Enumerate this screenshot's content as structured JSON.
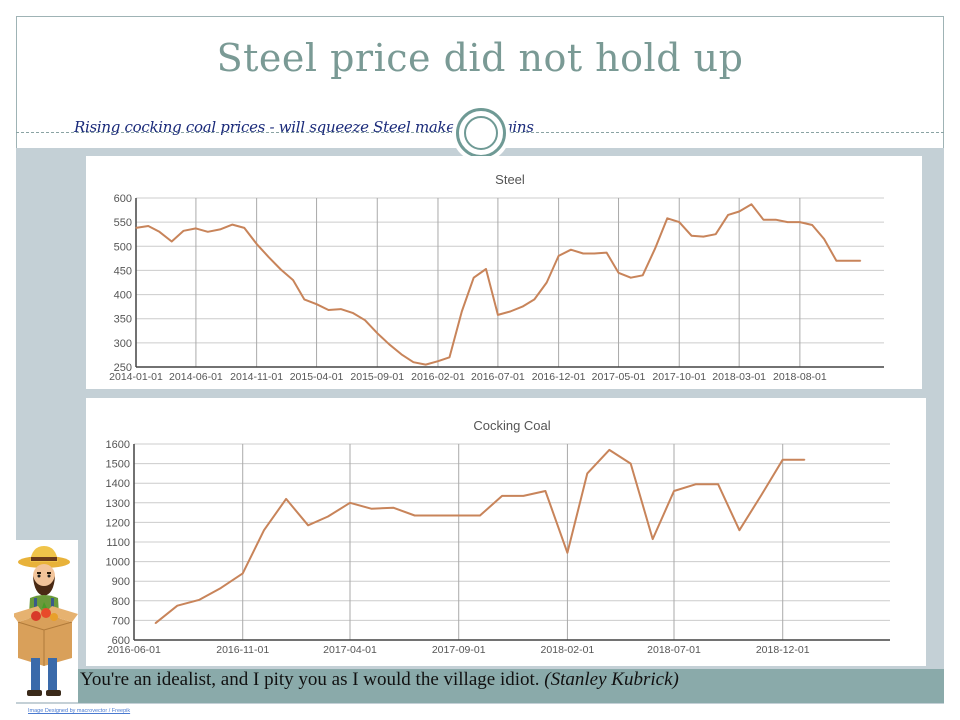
{
  "slide": {
    "title": "Steel price did not hold up",
    "subtitle": "Rising cocking coal prices - will squeeze Steel makers margins",
    "quote_text": "You're an idealist, and I pity you as I would the village idiot.",
    "quote_author": "(Stanley Kubrick)",
    "image_credit": "Image Designed by macrovector / Freepik",
    "colors": {
      "title": "#7a9a95",
      "band": "#c4d0d6",
      "line": "#c8845a",
      "quote_bar": "#8aaaaa",
      "subtitle": "#1a2a7a"
    }
  },
  "chart_data": [
    {
      "type": "line",
      "title": "Steel",
      "xlabel": "",
      "ylabel": "",
      "ylim": [
        250,
        600
      ],
      "yticks": [
        250,
        300,
        350,
        400,
        450,
        500,
        550,
        600
      ],
      "xlim": [
        "2014-01-01",
        "2019-03-01"
      ],
      "xticks": [
        "2014-01-01",
        "2014-06-01",
        "2014-11-01",
        "2015-04-01",
        "2015-09-01",
        "2016-02-01",
        "2016-07-01",
        "2016-12-01",
        "2017-05-01",
        "2017-10-01",
        "2018-03-01",
        "2018-08-01"
      ],
      "grid": true,
      "series": [
        {
          "name": "",
          "x": [
            "2014-01-01",
            "2014-02-01",
            "2014-03-01",
            "2014-04-01",
            "2014-05-01",
            "2014-06-01",
            "2014-07-01",
            "2014-08-01",
            "2014-09-01",
            "2014-10-01",
            "2014-11-01",
            "2014-12-01",
            "2015-01-01",
            "2015-02-01",
            "2015-03-01",
            "2015-04-01",
            "2015-05-01",
            "2015-06-01",
            "2015-07-01",
            "2015-08-01",
            "2015-09-01",
            "2015-10-01",
            "2015-11-01",
            "2015-12-01",
            "2016-01-01",
            "2016-02-01",
            "2016-03-01",
            "2016-04-01",
            "2016-05-01",
            "2016-06-01",
            "2016-07-01",
            "2016-08-01",
            "2016-09-01",
            "2016-10-01",
            "2016-11-01",
            "2016-12-01",
            "2017-01-01",
            "2017-02-01",
            "2017-03-01",
            "2017-04-01",
            "2017-05-01",
            "2017-06-01",
            "2017-07-01",
            "2017-08-01",
            "2017-09-01",
            "2017-10-01",
            "2017-11-01",
            "2017-12-01",
            "2018-01-01",
            "2018-02-01",
            "2018-03-01",
            "2018-04-01",
            "2018-05-01",
            "2018-06-01",
            "2018-07-01",
            "2018-08-01",
            "2018-09-01",
            "2018-10-01",
            "2018-11-01",
            "2018-12-01",
            "2019-01-01"
          ],
          "values": [
            538,
            542,
            530,
            510,
            532,
            537,
            530,
            535,
            545,
            538,
            505,
            478,
            452,
            430,
            390,
            380,
            368,
            370,
            362,
            347,
            320,
            297,
            276,
            260,
            255,
            262,
            270,
            365,
            435,
            453,
            358,
            365,
            375,
            390,
            425,
            480,
            493,
            485,
            485,
            487,
            445,
            435,
            440,
            495,
            558,
            550,
            522,
            520,
            525,
            565,
            572,
            587,
            555,
            555,
            550,
            550,
            544,
            515,
            470,
            470,
            470
          ]
        }
      ]
    },
    {
      "type": "line",
      "title": "Cocking Coal",
      "xlabel": "",
      "ylabel": "",
      "ylim": [
        600,
        1600
      ],
      "yticks": [
        600,
        700,
        800,
        900,
        1000,
        1100,
        1200,
        1300,
        1400,
        1500,
        1600
      ],
      "xlim": [
        "2016-06-01",
        "2019-05-01"
      ],
      "xticks": [
        "2016-06-01",
        "2016-11-01",
        "2017-04-01",
        "2017-09-01",
        "2018-02-01",
        "2018-07-01",
        "2018-12-01"
      ],
      "grid": true,
      "series": [
        {
          "name": "",
          "x": [
            "2016-07-01",
            "2016-08-01",
            "2016-09-01",
            "2016-10-01",
            "2016-11-01",
            "2016-12-01",
            "2017-01-01",
            "2017-02-01",
            "2017-03-01",
            "2017-04-01",
            "2017-05-01",
            "2017-06-01",
            "2017-07-01",
            "2017-08-01",
            "2017-09-01",
            "2017-10-01",
            "2017-11-01",
            "2017-12-01",
            "2018-01-01",
            "2018-02-01",
            "2018-03-01",
            "2018-04-01",
            "2018-05-01",
            "2018-06-01",
            "2018-07-01",
            "2018-08-01",
            "2018-09-01",
            "2018-10-01",
            "2018-11-01",
            "2018-12-01",
            "2019-01-01"
          ],
          "values": [
            685,
            775,
            805,
            865,
            940,
            1160,
            1320,
            1185,
            1230,
            1300,
            1270,
            1275,
            1235,
            1235,
            1235,
            1235,
            1335,
            1335,
            1360,
            1045,
            1450,
            1570,
            1500,
            1115,
            1360,
            1395,
            1395,
            1160,
            1340,
            1520,
            1520
          ]
        }
      ]
    }
  ]
}
